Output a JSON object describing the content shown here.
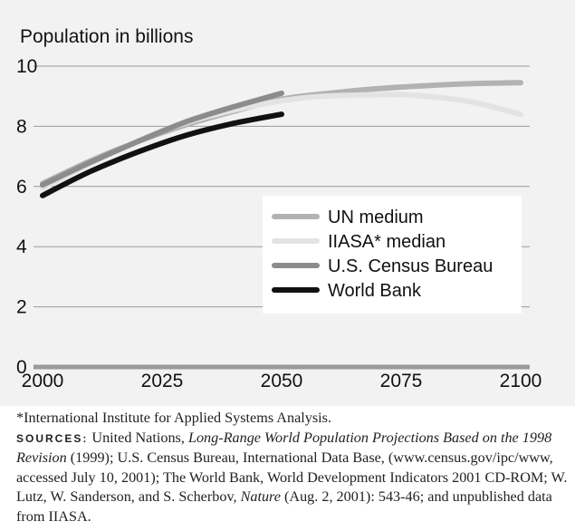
{
  "chart_data": {
    "type": "line",
    "ylabel": "Population in billions",
    "x_ticks": [
      2000,
      2025,
      2050,
      2075,
      2100
    ],
    "y_ticks": [
      0,
      2,
      4,
      6,
      8,
      10
    ],
    "xlim": [
      2000,
      2100
    ],
    "ylim": [
      0,
      10
    ],
    "grid": "horizontal",
    "legend_position": "center-right",
    "series": [
      {
        "name": "UN medium",
        "color": "#b2b2b2",
        "x": [
          2000,
          2010,
          2020,
          2030,
          2040,
          2050,
          2060,
          2070,
          2080,
          2090,
          2100
        ],
        "y": [
          6.1,
          6.85,
          7.5,
          8.05,
          8.5,
          8.9,
          9.1,
          9.25,
          9.35,
          9.42,
          9.45
        ]
      },
      {
        "name": "IIASA* median",
        "color": "#e3e3e3",
        "x": [
          2000,
          2025,
          2050,
          2070,
          2080,
          2090,
          2100
        ],
        "y": [
          5.95,
          7.85,
          8.85,
          9.05,
          9.0,
          8.8,
          8.4
        ]
      },
      {
        "name": "U.S. Census Bureau",
        "color": "#8c8c8c",
        "x": [
          2000,
          2010,
          2020,
          2030,
          2040,
          2050
        ],
        "y": [
          6.05,
          6.8,
          7.5,
          8.15,
          8.65,
          9.1
        ]
      },
      {
        "name": "World Bank",
        "color": "#111111",
        "x": [
          2000,
          2010,
          2020,
          2030,
          2040,
          2050
        ],
        "y": [
          5.7,
          6.5,
          7.15,
          7.7,
          8.1,
          8.4
        ]
      }
    ]
  },
  "notes": {
    "footnote": "*International Institute for Applied Systems Analysis.",
    "sources_label": "SOURCES:",
    "s1": " United Nations, ",
    "s2": "Long-Range World Population Projections Based on the 1998 Revision",
    "s3": " (1999); U.S. Census Bureau, International Data Base, (www.census.gov/ipc/www, accessed July 10, 2001); The World Bank, World Development Indicators 2001 CD-ROM; W. Lutz, W. Sanderson, and S. Scherbov, ",
    "s4": "Nature",
    "s5": " (Aug. 2, 2001): 543-46; and unpublished data from IIASA."
  }
}
